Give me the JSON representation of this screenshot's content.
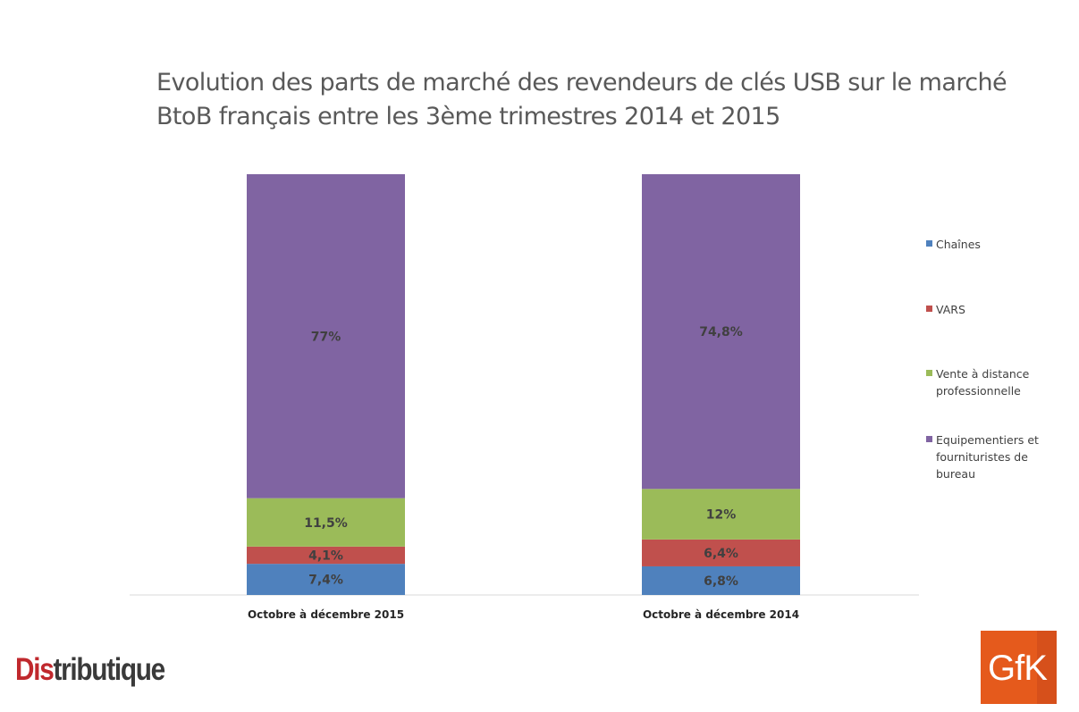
{
  "chart_data": {
    "type": "bar",
    "stacked": true,
    "title": "Evolution des parts de marché des revendeurs de clés USB sur le marché BtoB français entre les 3ème trimestres 2014 et 2015",
    "categories": [
      "Octobre à décembre 2015",
      "Octobre à décembre 2014"
    ],
    "series": [
      {
        "name": "Chaînes",
        "color": "#4f81bd",
        "values": [
          7.4,
          6.8
        ],
        "labels": [
          "7,4%",
          "6,8%"
        ]
      },
      {
        "name": "VARS",
        "color": "#c0504d",
        "values": [
          4.1,
          6.4
        ],
        "labels": [
          "4,1%",
          "6,4%"
        ]
      },
      {
        "name": "Vente à distance professionnelle",
        "color": "#9bbb59",
        "values": [
          11.5,
          12
        ],
        "labels": [
          "11,5%",
          "12%"
        ]
      },
      {
        "name": "Equipementiers et fournituristes de bureau",
        "color": "#8064a2",
        "values": [
          77,
          74.8
        ],
        "labels": [
          "77%",
          "74,8%"
        ]
      }
    ],
    "ylim": [
      0,
      100
    ],
    "grid": false,
    "legend_position": "right"
  },
  "logos": {
    "distributique_red": "Dis",
    "distributique_dark": "tributique",
    "gfk": "GfK"
  }
}
